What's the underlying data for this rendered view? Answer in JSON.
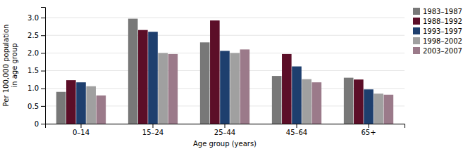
{
  "chart_data": {
    "type": "bar",
    "categories": [
      "0–14",
      "15–24",
      "25–44",
      "45–64",
      "65+"
    ],
    "series": [
      {
        "name": "1983–1987",
        "values": [
          0.9,
          2.97,
          2.3,
          1.35,
          1.3
        ],
        "color": "#787878"
      },
      {
        "name": "1988–1992",
        "values": [
          1.23,
          2.65,
          2.92,
          1.97,
          1.25
        ],
        "color": "#5c0e28"
      },
      {
        "name": "1993–1997",
        "values": [
          1.17,
          2.6,
          2.06,
          1.62,
          0.97
        ],
        "color": "#1e3f6e"
      },
      {
        "name": "1998–2002",
        "values": [
          1.06,
          2.0,
          2.0,
          1.26,
          0.85
        ],
        "color": "#a0a0a0"
      },
      {
        "name": "2003–2007",
        "values": [
          0.8,
          1.97,
          2.1,
          1.17,
          0.82
        ],
        "color": "#9b7a8a"
      }
    ],
    "ylabel": "Per 100,000 population\nin age group",
    "xlabel": "Age group (years)",
    "ylim": [
      0,
      3.3
    ],
    "yticks": [
      0,
      0.5,
      {
        "value": 1,
        "label": "1.0"
      },
      1.5,
      {
        "value": 2,
        "label": "2.0"
      },
      2.5,
      {
        "value": 3,
        "label": "3.0"
      }
    ],
    "grid": true,
    "legend": "upper right"
  }
}
